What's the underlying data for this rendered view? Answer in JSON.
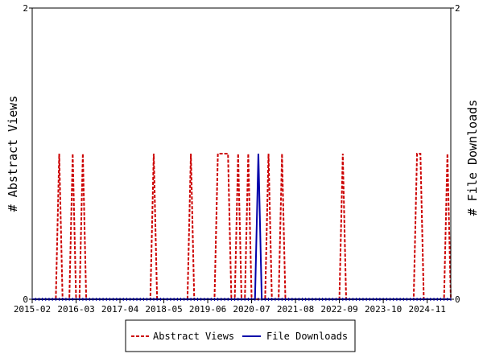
{
  "chart_data": {
    "type": "line",
    "x_tick_labels": [
      "2015-02",
      "2016-03",
      "2017-04",
      "2018-05",
      "2019-06",
      "2020-07",
      "2021-08",
      "2022-09",
      "2023-10",
      "2024-11"
    ],
    "x_range": [
      "2015-02",
      "2025-06"
    ],
    "ylabel_left": "# Abstract Views",
    "ylabel_right": "# File Downloads",
    "ylim_left": [
      0,
      2
    ],
    "ylim_right": [
      0,
      2
    ],
    "y_ticks_left": [
      "0",
      "2"
    ],
    "y_ticks_right": [
      "0",
      "2"
    ],
    "legend_position": "bottom-center",
    "series": [
      {
        "name": "Abstract Views",
        "color": "#cc0000",
        "style": "dashed",
        "axis": "left",
        "nonzero_points": [
          {
            "x": "2015-10",
            "y": 1
          },
          {
            "x": "2016-02",
            "y": 1
          },
          {
            "x": "2016-05",
            "y": 1
          },
          {
            "x": "2018-02",
            "y": 1
          },
          {
            "x": "2019-01",
            "y": 1
          },
          {
            "x": "2019-09",
            "y": 1
          },
          {
            "x": "2019-10",
            "y": 1
          },
          {
            "x": "2019-11",
            "y": 1
          },
          {
            "x": "2019-12",
            "y": 1
          },
          {
            "x": "2020-03",
            "y": 1
          },
          {
            "x": "2020-06",
            "y": 1
          },
          {
            "x": "2020-12",
            "y": 1
          },
          {
            "x": "2021-04",
            "y": 1
          },
          {
            "x": "2022-10",
            "y": 1
          },
          {
            "x": "2024-08",
            "y": 1
          },
          {
            "x": "2024-09",
            "y": 1
          },
          {
            "x": "2025-05",
            "y": 1
          }
        ]
      },
      {
        "name": "File Downloads",
        "color": "#0000aa",
        "style": "solid",
        "axis": "right",
        "nonzero_points": [
          {
            "x": "2020-09",
            "y": 1
          }
        ]
      }
    ]
  }
}
